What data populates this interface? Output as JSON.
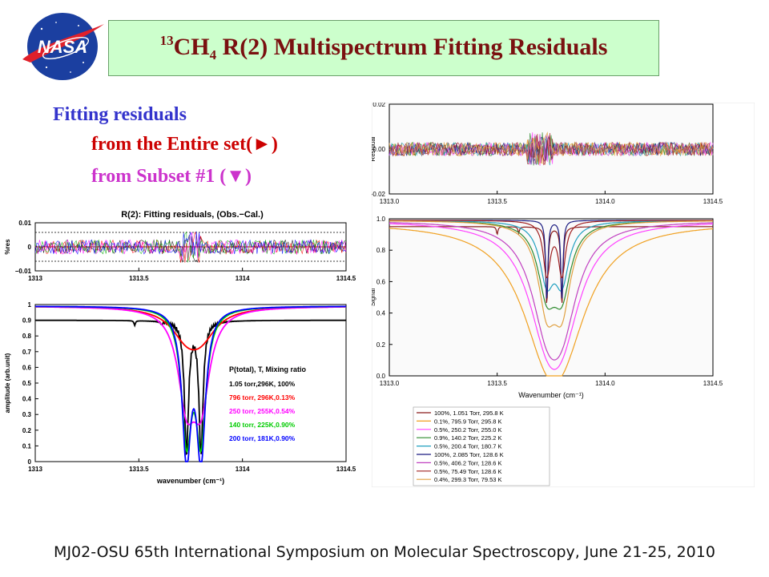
{
  "logo_text": "NASA",
  "title": {
    "sup": "13",
    "main_a": "CH",
    "sub": "4",
    "main_b": " R(2) Multispectrum Fitting Residuals"
  },
  "intro": {
    "heading": "Fitting residuals",
    "line_entire": "from the Entire set(►)",
    "line_subset": "from Subset #1 (▼)"
  },
  "footer": "MJ02-OSU 65th International Symposium on Molecular Spectroscopy, June 21-25, 2010",
  "colors": {
    "title_bg": "#ccffcc",
    "title_text": "#7a1010",
    "heading": "#3333cc",
    "entire": "#cc0000",
    "subset": "#cc33cc"
  },
  "chart_data": [
    {
      "id": "left_residual",
      "type": "line",
      "title": "R(2): Fitting residuals, (Obs.−Cal.)",
      "ylabel": "%res",
      "xlim": [
        1313,
        1314.5
      ],
      "ylim": [
        -0.01,
        0.01
      ],
      "xticks": [
        "1313",
        "1313.5",
        "1314",
        "1314.5"
      ],
      "yticks": [
        "0.01",
        "0",
        "−0.01"
      ],
      "grid": false
    },
    {
      "id": "left_spectrum",
      "type": "line",
      "xlabel": "wavenumber (cm⁻¹)",
      "ylabel": "amplitude (arb.unit)",
      "xlim": [
        1313,
        1314.5
      ],
      "ylim": [
        0,
        1
      ],
      "xticks": [
        "1313",
        "1313.5",
        "1314",
        "1314.5"
      ],
      "yticks": [
        "1",
        "0.9",
        "0.8",
        "0.7",
        "0.6",
        "0.5",
        "0.4",
        "0.3",
        "0.2",
        "0.1",
        "0"
      ],
      "legend_title": "P(total), T, Mixing ratio",
      "legend_position": "right",
      "series": [
        {
          "name": "1.05 torr,296K, 100%",
          "color": "#000000",
          "baseline": 0.9,
          "width_torr": 0.012,
          "depths": [
            0.83,
            0.83
          ]
        },
        {
          "name": "796 torr, 296K,0.13%",
          "color": "#ff0000",
          "baseline": 0.99,
          "width_torr": 0.09,
          "depths": [
            0.16,
            0.16
          ]
        },
        {
          "name": "250 torr, 255K,0.54%",
          "color": "#ff00ff",
          "baseline": 0.99,
          "width_torr": 0.05,
          "depths": [
            0.55,
            0.55
          ]
        },
        {
          "name": "140 torr, 225K,0.90%",
          "color": "#00cc00",
          "baseline": 0.99,
          "width_torr": 0.03,
          "depths": [
            0.8,
            0.8
          ]
        },
        {
          "name": "200 torr, 181K,0.90%",
          "color": "#0000ff",
          "baseline": 0.99,
          "width_torr": 0.026,
          "depths": [
            0.92,
            0.92
          ]
        }
      ],
      "line_centers": [
        1313.73,
        1313.8
      ]
    },
    {
      "id": "right_residual",
      "type": "line",
      "ylabel": "Residual",
      "xlim": [
        1313.0,
        1314.5
      ],
      "ylim": [
        -0.02,
        0.02
      ],
      "xticks": [
        "1313.0",
        "1313.5",
        "1314.0",
        "1314.5"
      ],
      "yticks": [
        "0.02",
        "0.00",
        "-0.02"
      ],
      "grid": false
    },
    {
      "id": "right_spectrum",
      "type": "line",
      "xlabel": "Wavenumber (cm⁻¹)",
      "ylabel": "Signal",
      "xlim": [
        1313.0,
        1314.5
      ],
      "ylim": [
        0,
        1
      ],
      "xticks": [
        "1313.0",
        "1313.5",
        "1314.0",
        "1314.5"
      ],
      "yticks": [
        "1.0",
        "0.8",
        "0.6",
        "0.4",
        "0.2",
        "0.0"
      ],
      "legend_position": "below",
      "series": [
        {
          "name": "100%, 1.051 Torr, 295.8 K",
          "color": "#8b1a1a",
          "baseline": 0.95,
          "width": 0.006,
          "depth": 0.9
        },
        {
          "name": "0.1%, 795.9 Torr, 295.8 K",
          "color": "#f0a020",
          "baseline": 0.98,
          "width": 0.15,
          "depth": 0.98
        },
        {
          "name": "0.5%, 250.2 Torr, 255.0 K",
          "color": "#ff40ff",
          "baseline": 0.99,
          "width": 0.11,
          "depth": 0.95
        },
        {
          "name": "0.9%, 140.2 Torr, 225.2 K",
          "color": "#2e8b2e",
          "baseline": 0.99,
          "width": 0.05,
          "depth": 0.75
        },
        {
          "name": "0.5%, 200.4 Torr, 180.7 K",
          "color": "#20a0c0",
          "baseline": 0.99,
          "width": 0.04,
          "depth": 0.65
        },
        {
          "name": "100%, 2.085 Torr, 128.6 K",
          "color": "#1a1a80",
          "baseline": 0.99,
          "width": 0.006,
          "depth": 0.92
        },
        {
          "name": "0.5%, 406.2 Torr, 128.6 K",
          "color": "#c040c0",
          "baseline": 0.99,
          "width": 0.09,
          "depth": 0.93
        },
        {
          "name": "0.5%, 75.49 Torr, 128.6 K",
          "color": "#a02020",
          "baseline": 0.99,
          "width": 0.02,
          "depth": 0.62
        },
        {
          "name": "0.4%, 299.3 Torr, 79.53 K",
          "color": "#e0a040",
          "baseline": 0.99,
          "width": 0.05,
          "depth": 0.9
        }
      ],
      "line_centers": [
        1313.73,
        1313.8
      ]
    }
  ]
}
